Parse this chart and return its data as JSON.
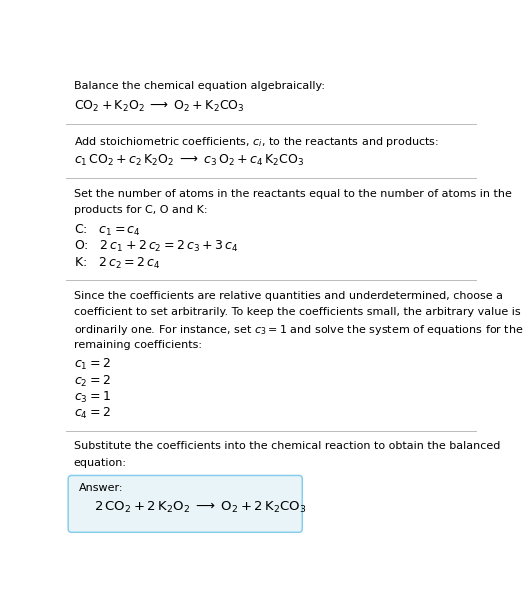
{
  "bg_color": "#ffffff",
  "text_color": "#000000",
  "line_color": "#bbbbbb",
  "answer_box_color": "#e8f4f8",
  "answer_box_border": "#87ceeb",
  "figsize": [
    5.29,
    6.07
  ],
  "dpi": 100,
  "sections": [
    {
      "type": "title_equation",
      "title": "Balance the chemical equation algebraically:",
      "equation": "$\\mathrm{CO_2 + K_2O_2 \\;\\longrightarrow\\; O_2 + K_2CO_3}$"
    },
    {
      "type": "stoichiometric",
      "title": "Add stoichiometric coefficients, $c_i$, to the reactants and products:",
      "equation": "$c_1\\,\\mathrm{CO_2} + c_2\\,\\mathrm{K_2O_2} \\;\\longrightarrow\\; c_3\\,\\mathrm{O_2} + c_4\\,\\mathrm{K_2CO_3}$"
    },
    {
      "type": "atoms",
      "title_lines": [
        "Set the number of atoms in the reactants equal to the number of atoms in the",
        "products for C, O and K:"
      ],
      "lines": [
        "C:   $c_1 = c_4$",
        "O:   $2\\,c_1 + 2\\,c_2 = 2\\,c_3 + 3\\,c_4$",
        "K:   $2\\,c_2 = 2\\,c_4$"
      ]
    },
    {
      "type": "solve",
      "title_lines": [
        "Since the coefficients are relative quantities and underdetermined, choose a",
        "coefficient to set arbitrarily. To keep the coefficients small, the arbitrary value is",
        "ordinarily one. For instance, set $c_3 = 1$ and solve the system of equations for the",
        "remaining coefficients:"
      ],
      "lines": [
        "$c_1 = 2$",
        "$c_2 = 2$",
        "$c_3 = 1$",
        "$c_4 = 2$"
      ]
    },
    {
      "type": "answer",
      "title_lines": [
        "Substitute the coefficients into the chemical reaction to obtain the balanced",
        "equation:"
      ],
      "answer_label": "Answer:",
      "answer_eq": "$2\\,\\mathrm{CO_2} + 2\\,\\mathrm{K_2O_2} \\;\\longrightarrow\\; \\mathrm{O_2} + 2\\,\\mathrm{K_2CO_3}$"
    }
  ]
}
